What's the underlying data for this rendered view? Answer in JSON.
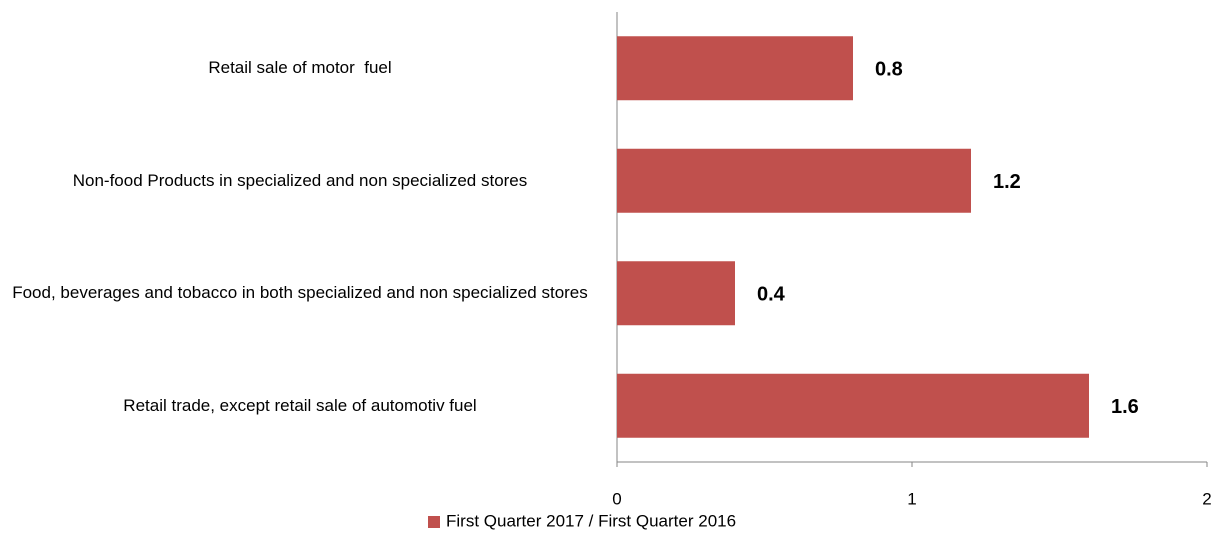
{
  "chart_data": {
    "type": "hbar",
    "categories": [
      "Retail sale of motor  fuel",
      "Non-food Products in specialized and non specialized stores",
      "Food, beverages and tobacco in both specialized and non specialized stores",
      "Retail trade, except retail sale of automotiv fuel"
    ],
    "series": [
      {
        "name": "First Quarter 2017 / First Quarter 2016",
        "color": "#c0504d",
        "values": [
          0.8,
          1.2,
          0.4,
          1.6
        ]
      }
    ],
    "xlim": [
      0,
      2
    ],
    "xticks": [
      0,
      1,
      2
    ],
    "grid": false,
    "legend": "bottom"
  }
}
